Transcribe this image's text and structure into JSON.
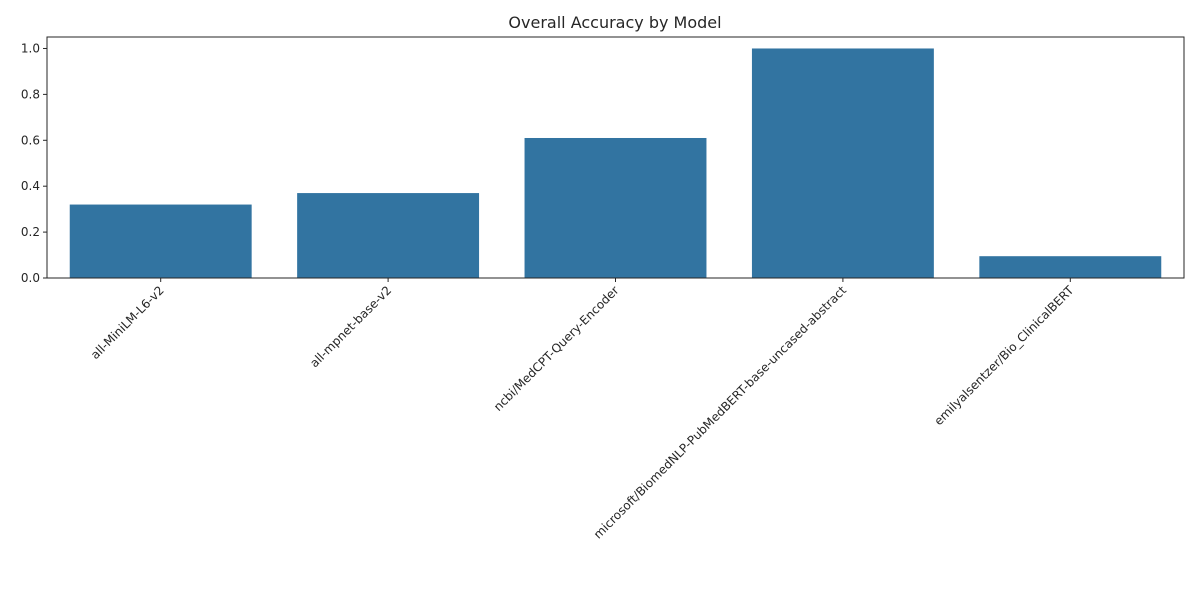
{
  "chart_data": {
    "type": "bar",
    "title": "Overall Accuracy by Model",
    "xlabel": "",
    "ylabel": "",
    "categories": [
      "all-MiniLM-L6-v2",
      "all-mpnet-base-v2",
      "ncbi/MedCPT-Query-Encoder",
      "microsoft/BiomedNLP-PubMedBERT-base-uncased-abstract",
      "emilyalsentzer/Bio_ClinicalBERT"
    ],
    "values": [
      0.32,
      0.37,
      0.61,
      1.0,
      0.095
    ],
    "ylim": [
      0,
      1.05
    ],
    "yticks": [
      "0.0",
      "0.2",
      "0.4",
      "0.6",
      "0.8",
      "1.0"
    ],
    "bar_color": "#3274a1",
    "grid": false,
    "legend": "none"
  }
}
